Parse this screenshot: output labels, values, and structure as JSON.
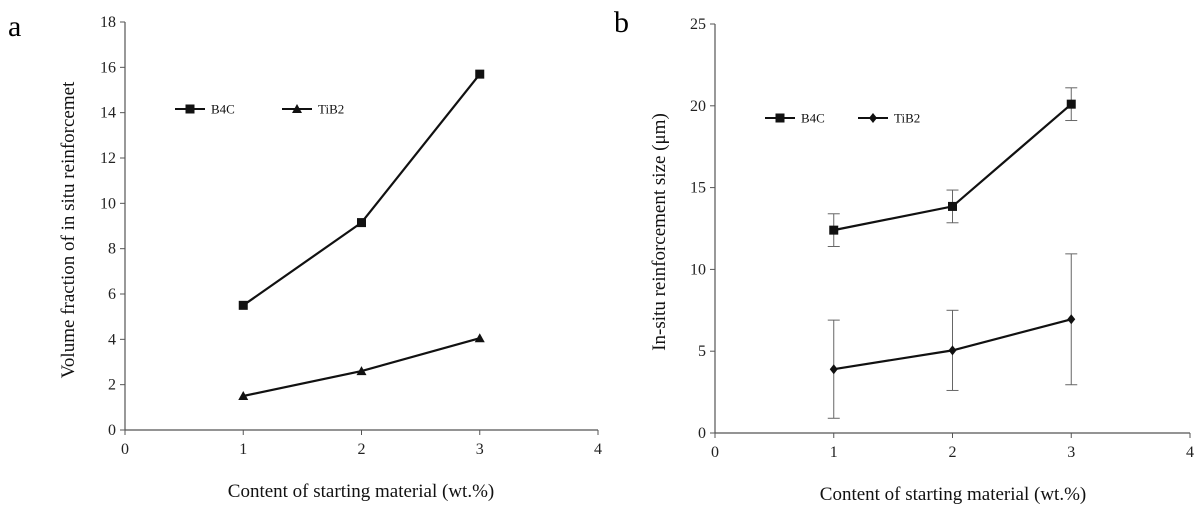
{
  "chart_data": [
    {
      "panel": "a",
      "type": "line",
      "title": "",
      "xlabel": "Content of starting material  (wt.%)",
      "ylabel": "Volume fraction of in situ reinforcemet",
      "xlim": [
        0,
        4
      ],
      "ylim": [
        0,
        18
      ],
      "xticks": [
        0,
        1,
        2,
        3,
        4
      ],
      "yticks": [
        0,
        2,
        4,
        6,
        8,
        10,
        12,
        14,
        16,
        18
      ],
      "x": [
        1,
        2,
        3
      ],
      "grid": false,
      "legend_position": "top-left",
      "series": [
        {
          "name": "B4C",
          "marker": "square",
          "values": [
            5.5,
            9.15,
            15.7
          ]
        },
        {
          "name": "TiB2",
          "marker": "triangle",
          "values": [
            1.5,
            2.6,
            4.05
          ]
        }
      ]
    },
    {
      "panel": "b",
      "type": "line",
      "title": "",
      "xlabel": "Content of starting material  (wt.%)",
      "ylabel": "In-situ reinforcement  size  (μm)",
      "xlim": [
        0,
        4
      ],
      "ylim": [
        0,
        25
      ],
      "xticks": [
        0,
        1,
        2,
        3,
        4
      ],
      "yticks": [
        0,
        5,
        10,
        15,
        20,
        25
      ],
      "x": [
        1,
        2,
        3
      ],
      "grid": false,
      "legend_position": "top-left",
      "series": [
        {
          "name": "B4C",
          "marker": "square",
          "values": [
            12.4,
            13.85,
            20.1
          ],
          "error": [
            1.0,
            1.0,
            1.0
          ]
        },
        {
          "name": "TiB2",
          "marker": "diamond",
          "values": [
            3.9,
            5.05,
            6.95
          ],
          "error": [
            3.0,
            2.45,
            4.0
          ]
        }
      ]
    }
  ]
}
